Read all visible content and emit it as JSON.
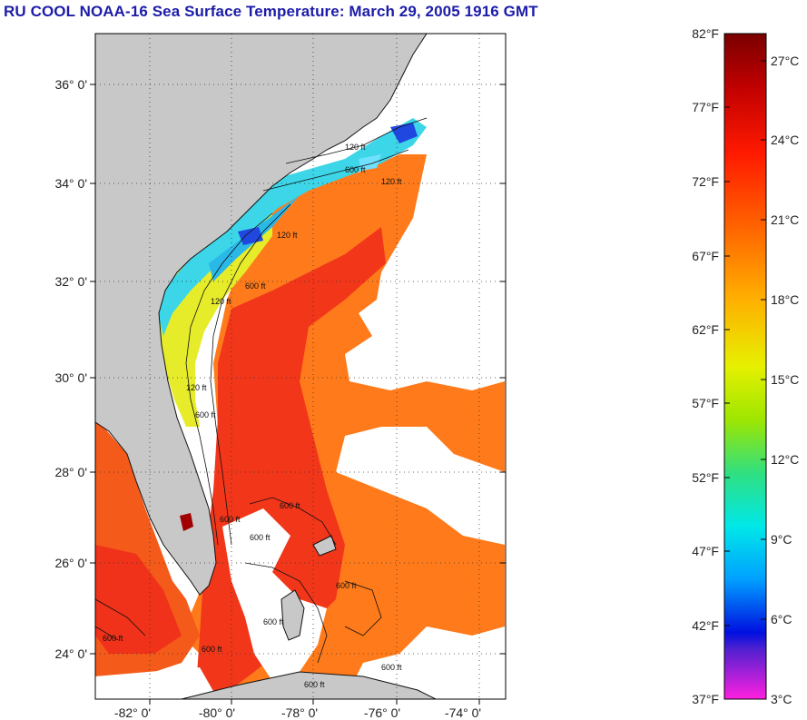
{
  "title": "RU COOL  NOAA-16  Sea Surface Temperature:  March 29, 2005 1916 GMT",
  "map": {
    "lat_labels": [
      "36° 0'",
      "34° 0'",
      "32° 0'",
      "30° 0'",
      "28° 0'",
      "26° 0'",
      "24° 0'"
    ],
    "lon_labels": [
      "-82° 0'",
      "-80° 0'",
      "-78° 0'",
      "-76° 0'",
      "-74° 0'"
    ],
    "contour_labels": [
      "120 ft",
      "120 ft",
      "600 ft",
      "120 ft",
      "600 ft",
      "600 ft",
      "600 ft",
      "600 ft",
      "600 ft",
      "600 ft",
      "600 ft",
      "600 ft",
      "600 ft",
      "600 ft",
      "120 ft",
      "600 ft",
      "120 ft"
    ],
    "colors": {
      "land": "#c8c8c8",
      "cloud": "#ffffff",
      "gulf_stream": "#f23a14",
      "warm_orange": "#ff7a1a",
      "shelf_cyan": "#3cd6e8",
      "shelf_yellow": "#e4ec2a",
      "cold_blue": "#2044e0"
    }
  },
  "colorbar": {
    "fahrenheit": [
      "82°F",
      "77°F",
      "72°F",
      "67°F",
      "62°F",
      "57°F",
      "52°F",
      "47°F",
      "42°F",
      "37°F"
    ],
    "celsius": [
      "27°C",
      "24°C",
      "21°C",
      "18°C",
      "15°C",
      "12°C",
      "9°C",
      "6°C",
      "3°C"
    ]
  }
}
